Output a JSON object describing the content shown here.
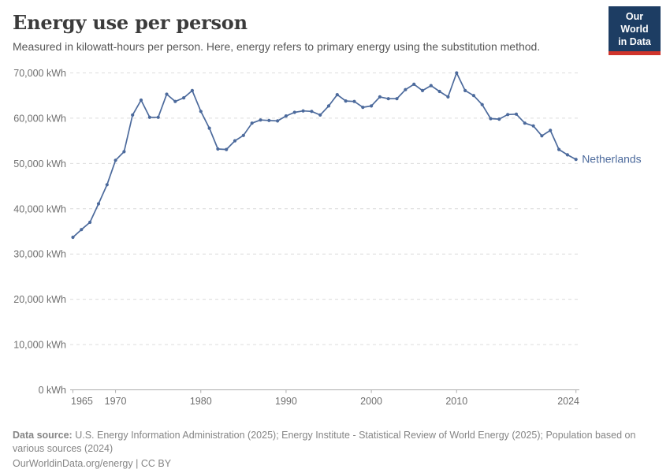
{
  "header": {
    "title": "Energy use per person",
    "subtitle": "Measured in kilowatt-hours per person. Here, energy refers to primary energy using the substitution method."
  },
  "logo": {
    "line1": "Our World",
    "line2": "in Data",
    "bg_color": "#1d3d63",
    "strip_color": "#d0342c"
  },
  "chart_data": {
    "type": "line",
    "title": "Energy use per person",
    "xlabel": "",
    "ylabel": "kWh",
    "xlim": [
      1965,
      2024
    ],
    "ylim": [
      0,
      70000
    ],
    "grid": "horizontal-dashed",
    "legend_position": "end-of-line-label",
    "x_ticks": [
      1965,
      1970,
      1980,
      1990,
      2000,
      2010,
      2024
    ],
    "y_ticks": [
      0,
      10000,
      20000,
      30000,
      40000,
      50000,
      60000,
      70000
    ],
    "y_tick_suffix": " kWh",
    "colors": {
      "line": "#4c6a9c",
      "grid": "#dcdcdc",
      "axis": "#adadad",
      "tick_text": "#6f6f6f"
    },
    "series": [
      {
        "name": "Netherlands",
        "color": "#4c6a9c",
        "x": [
          1965,
          1966,
          1967,
          1968,
          1969,
          1970,
          1971,
          1972,
          1973,
          1974,
          1975,
          1976,
          1977,
          1978,
          1979,
          1980,
          1981,
          1982,
          1983,
          1984,
          1985,
          1986,
          1987,
          1988,
          1989,
          1990,
          1991,
          1992,
          1993,
          1994,
          1995,
          1996,
          1997,
          1998,
          1999,
          2000,
          2001,
          2002,
          2003,
          2004,
          2005,
          2006,
          2007,
          2008,
          2009,
          2010,
          2011,
          2012,
          2013,
          2014,
          2015,
          2016,
          2017,
          2018,
          2019,
          2020,
          2021,
          2022,
          2023,
          2024
        ],
        "values": [
          33700,
          35400,
          37000,
          41100,
          45300,
          50700,
          52600,
          60700,
          64000,
          60200,
          60200,
          65300,
          63700,
          64500,
          66100,
          61500,
          57800,
          53200,
          53100,
          55000,
          56200,
          58900,
          59600,
          59500,
          59400,
          60500,
          61300,
          61600,
          61500,
          60700,
          62700,
          65200,
          63800,
          63700,
          62400,
          62700,
          64700,
          64300,
          64300,
          66300,
          67500,
          66100,
          67200,
          65900,
          64700,
          70000,
          66100,
          65000,
          63000,
          59900,
          59800,
          60800,
          60900,
          58900,
          58300,
          56100,
          57300,
          53100,
          51900,
          50900
        ]
      }
    ]
  },
  "footer": {
    "source_label": "Data source:",
    "source_text": " U.S. Energy Information Administration (2025); Energy Institute - Statistical Review of World Energy (2025); Population based on various sources (2024)",
    "link_text": "OurWorldinData.org/energy",
    "divider": " | ",
    "license": "CC BY"
  }
}
